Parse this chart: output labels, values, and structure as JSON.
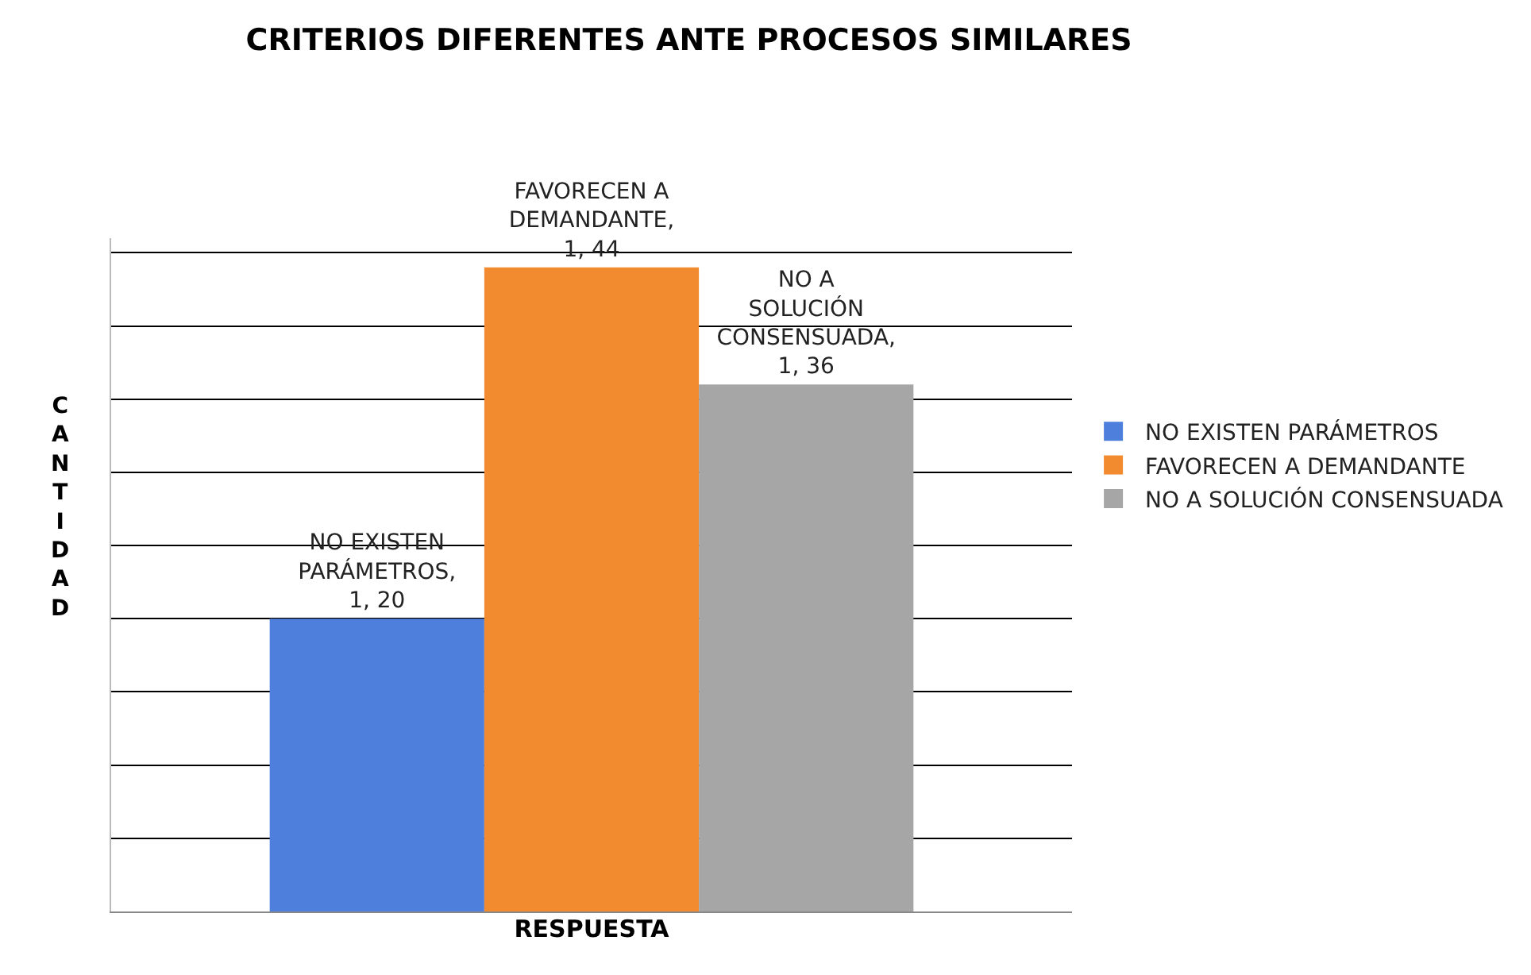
{
  "chart_data": {
    "type": "bar",
    "title": "CRITERIOS DIFERENTES ANTE PROCESOS SIMILARES",
    "xlabel": "RESPUESTA",
    "ylabel": "CANTIDAD",
    "categories": [
      null
    ],
    "series": [
      {
        "name": "NO EXISTEN PARÁMETROS",
        "color": "#4f7fdc",
        "values": [
          20
        ],
        "value_labels": [
          "NO EXISTEN PARÁMETROS, 1, 20"
        ]
      },
      {
        "name": "FAVORECEN A DEMANDANTE",
        "color": "#f28a30",
        "values": [
          44
        ],
        "value_labels": [
          "FAVORECEN A DEMANDANTE, 1, 44"
        ]
      },
      {
        "name": "NO A SOLUCIÓN CONSENSUADA",
        "color": "#a6a6a6",
        "values": [
          36
        ],
        "value_labels": [
          "NO A SOLUCIÓN CONSENSUADA, 1, 36"
        ]
      }
    ],
    "ylim": [
      0,
      46
    ],
    "yticks": [
      {
        "value": 0,
        "label": null
      },
      {
        "value": 5,
        "label": null
      },
      {
        "value": 10,
        "label": null
      },
      {
        "value": 15,
        "label": null
      },
      {
        "value": 20,
        "label": null
      },
      {
        "value": 25,
        "label": null
      },
      {
        "value": 30,
        "label": null
      },
      {
        "value": 35,
        "label": null
      },
      {
        "value": 40,
        "label": null
      },
      {
        "value": 45,
        "label": null
      }
    ],
    "grid": "y",
    "legend": "right",
    "tick_labels": false
  }
}
